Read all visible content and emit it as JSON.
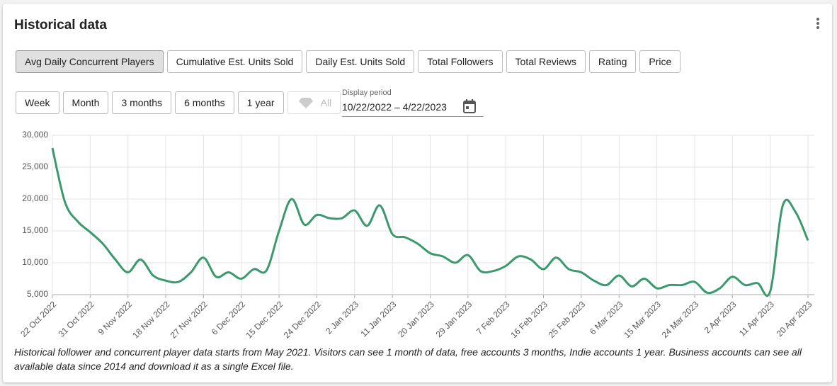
{
  "header": {
    "title": "Historical data"
  },
  "tabs": [
    "Avg Daily Concurrent Players",
    "Cumulative Est. Units Sold",
    "Daily Est. Units Sold",
    "Total Followers",
    "Total Reviews",
    "Rating",
    "Price"
  ],
  "periods": [
    "Week",
    "Month",
    "3 months",
    "6 months",
    "1 year",
    "All"
  ],
  "display_period": {
    "label": "Display period",
    "value": "10/22/2022 – 4/22/2023"
  },
  "chart_data": {
    "type": "line",
    "categories": [
      "22 Oct 2022",
      null,
      null,
      "31 Oct 2022",
      null,
      null,
      "9 Nov 2022",
      null,
      null,
      "18 Nov 2022",
      null,
      null,
      "27 Nov 2022",
      null,
      null,
      "6 Dec 2022",
      null,
      null,
      "15 Dec 2022",
      null,
      null,
      "24 Dec 2022",
      null,
      null,
      "2 Jan 2023",
      null,
      null,
      "11 Jan 2023",
      null,
      null,
      "20 Jan 2023",
      null,
      null,
      "29 Jan 2023",
      null,
      null,
      "7 Feb 2023",
      null,
      null,
      "16 Feb 2023",
      null,
      null,
      "25 Feb 2023",
      null,
      null,
      "6 Mar 2023",
      null,
      null,
      "15 Mar 2023",
      null,
      null,
      "24 Mar 2023",
      null,
      null,
      "2 Apr 2023",
      null,
      null,
      "11 Apr 2023",
      null,
      null,
      "20 Apr 2023"
    ],
    "values": [
      28000,
      19500,
      16500,
      14800,
      13000,
      10500,
      8500,
      10500,
      8000,
      7200,
      7000,
      8500,
      10800,
      7800,
      8500,
      7500,
      9000,
      8800,
      15000,
      20000,
      16000,
      17500,
      17000,
      17000,
      18200,
      15800,
      19000,
      14500,
      14000,
      13000,
      11500,
      11000,
      10000,
      11200,
      8700,
      8700,
      9500,
      11000,
      10500,
      9000,
      10800,
      9000,
      8500,
      7200,
      6500,
      8000,
      6300,
      7500,
      6000,
      6500,
      6500,
      7000,
      5300,
      6000,
      7800,
      6500,
      6800,
      5500,
      19000,
      18000,
      13500
    ],
    "color": "#3a9a6e",
    "ylim": [
      5000,
      30000
    ],
    "yticks": [
      {
        "value": 5000,
        "label": "5,000"
      },
      {
        "value": 10000,
        "label": "10,000"
      },
      {
        "value": 15000,
        "label": "15,000"
      },
      {
        "value": 20000,
        "label": "20,000"
      },
      {
        "value": 25000,
        "label": "25,000"
      },
      {
        "value": 30000,
        "label": "30,000"
      }
    ],
    "grid": true
  },
  "footnote": "Historical follower and concurrent player data starts from May 2021. Visitors can see 1 month of data, free accounts 3 months, Indie accounts 1 year. Business accounts can see all available data since 2014 and download it as a single Excel file."
}
